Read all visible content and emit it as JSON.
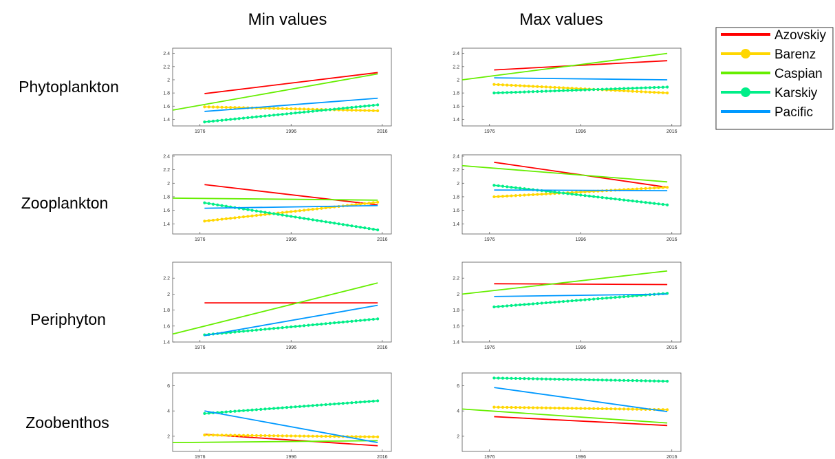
{
  "column_titles": [
    "Min values",
    "Max values"
  ],
  "row_labels": [
    "Phytoplankton",
    "Zooplankton",
    "Periphyton",
    "Zoobenthos"
  ],
  "legend": [
    {
      "name": "Azovskiy",
      "color": "#ff0000",
      "marker": false
    },
    {
      "name": "Barenz",
      "color": "#ffd700",
      "marker": true
    },
    {
      "name": "Caspian",
      "color": "#66ee00",
      "marker": false
    },
    {
      "name": "Karskiy",
      "color": "#00ee88",
      "marker": true
    },
    {
      "name": "Pacific",
      "color": "#0099ff",
      "marker": false
    }
  ],
  "chart_data": [
    {
      "type": "line",
      "row": "Phytoplankton",
      "column": "Min values",
      "xlim": [
        1970,
        2018
      ],
      "ylim": [
        1.3,
        2.48
      ],
      "xticks": [
        "1976",
        "1996",
        "2016"
      ],
      "yticks": [
        "1.4",
        "1.6",
        "1.8",
        "2",
        "2.2",
        "2.4"
      ],
      "series": [
        {
          "name": "Azovskiy",
          "x": [
            1977,
            2015
          ],
          "y": [
            1.79,
            2.11
          ]
        },
        {
          "name": "Barenz",
          "x": [
            1977,
            2015
          ],
          "y": [
            1.59,
            1.53
          ]
        },
        {
          "name": "Caspian",
          "x": [
            1970,
            2015
          ],
          "y": [
            1.54,
            2.09
          ]
        },
        {
          "name": "Karskiy",
          "x": [
            1977,
            2015
          ],
          "y": [
            1.36,
            1.62
          ]
        },
        {
          "name": "Pacific",
          "x": [
            1977,
            2015
          ],
          "y": [
            1.52,
            1.72
          ]
        }
      ]
    },
    {
      "type": "line",
      "row": "Phytoplankton",
      "column": "Max values",
      "xlim": [
        1970,
        2018
      ],
      "ylim": [
        1.3,
        2.48
      ],
      "xticks": [
        "1976",
        "1996",
        "2016"
      ],
      "yticks": [
        "1.4",
        "1.6",
        "1.8",
        "2",
        "2.2",
        "2.4"
      ],
      "series": [
        {
          "name": "Azovskiy",
          "x": [
            1977,
            2015
          ],
          "y": [
            2.15,
            2.29
          ]
        },
        {
          "name": "Barenz",
          "x": [
            1977,
            2015
          ],
          "y": [
            1.93,
            1.8
          ]
        },
        {
          "name": "Caspian",
          "x": [
            1970,
            2015
          ],
          "y": [
            2.0,
            2.4
          ]
        },
        {
          "name": "Karskiy",
          "x": [
            1977,
            2015
          ],
          "y": [
            1.8,
            1.89
          ]
        },
        {
          "name": "Pacific",
          "x": [
            1977,
            2015
          ],
          "y": [
            2.03,
            2.0
          ]
        }
      ]
    },
    {
      "type": "line",
      "row": "Zooplankton",
      "column": "Min values",
      "xlim": [
        1970,
        2018
      ],
      "ylim": [
        1.25,
        2.42
      ],
      "xticks": [
        "1976",
        "1996",
        "2016"
      ],
      "yticks": [
        "1.4",
        "1.6",
        "1.8",
        "2",
        "2.2",
        "2.4"
      ],
      "series": [
        {
          "name": "Azovskiy",
          "x": [
            1977,
            2015
          ],
          "y": [
            1.98,
            1.68
          ]
        },
        {
          "name": "Barenz",
          "x": [
            1977,
            2015
          ],
          "y": [
            1.44,
            1.72
          ]
        },
        {
          "name": "Caspian",
          "x": [
            1970,
            2015
          ],
          "y": [
            1.78,
            1.75
          ]
        },
        {
          "name": "Karskiy",
          "x": [
            1977,
            2015
          ],
          "y": [
            1.71,
            1.31
          ]
        },
        {
          "name": "Pacific",
          "x": [
            1977,
            2015
          ],
          "y": [
            1.63,
            1.67
          ]
        }
      ]
    },
    {
      "type": "line",
      "row": "Zooplankton",
      "column": "Max values",
      "xlim": [
        1970,
        2018
      ],
      "ylim": [
        1.25,
        2.42
      ],
      "xticks": [
        "1976",
        "1996",
        "2016"
      ],
      "yticks": [
        "1.4",
        "1.6",
        "1.8",
        "2",
        "2.2",
        "2.4"
      ],
      "series": [
        {
          "name": "Azovskiy",
          "x": [
            1977,
            2015
          ],
          "y": [
            2.31,
            1.94
          ]
        },
        {
          "name": "Barenz",
          "x": [
            1977,
            2015
          ],
          "y": [
            1.8,
            1.94
          ]
        },
        {
          "name": "Caspian",
          "x": [
            1970,
            2015
          ],
          "y": [
            2.26,
            2.02
          ]
        },
        {
          "name": "Karskiy",
          "x": [
            1977,
            2015
          ],
          "y": [
            1.97,
            1.68
          ]
        },
        {
          "name": "Pacific",
          "x": [
            1977,
            2015
          ],
          "y": [
            1.9,
            1.89
          ]
        }
      ]
    },
    {
      "type": "line",
      "row": "Periphyton",
      "column": "Min values",
      "xlim": [
        1970,
        2018
      ],
      "ylim": [
        1.4,
        2.4
      ],
      "xticks": [
        "1976",
        "1996",
        "2016"
      ],
      "yticks": [
        "1.4",
        "1.6",
        "1.8",
        "2",
        "2.2"
      ],
      "series": [
        {
          "name": "Azovskiy",
          "x": [
            1977,
            2015
          ],
          "y": [
            1.89,
            1.89
          ]
        },
        {
          "name": "Caspian",
          "x": [
            1970,
            2015
          ],
          "y": [
            1.5,
            2.14
          ]
        },
        {
          "name": "Karskiy",
          "x": [
            1977,
            2015
          ],
          "y": [
            1.49,
            1.69
          ]
        },
        {
          "name": "Pacific",
          "x": [
            1977,
            2015
          ],
          "y": [
            1.48,
            1.86
          ]
        }
      ]
    },
    {
      "type": "line",
      "row": "Periphyton",
      "column": "Max values",
      "xlim": [
        1970,
        2018
      ],
      "ylim": [
        1.4,
        2.4
      ],
      "xticks": [
        "1976",
        "1996",
        "2016"
      ],
      "yticks": [
        "1.4",
        "1.6",
        "1.8",
        "2",
        "2.2"
      ],
      "series": [
        {
          "name": "Azovskiy",
          "x": [
            1977,
            2015
          ],
          "y": [
            2.13,
            2.12
          ]
        },
        {
          "name": "Caspian",
          "x": [
            1970,
            2015
          ],
          "y": [
            2.0,
            2.29
          ]
        },
        {
          "name": "Karskiy",
          "x": [
            1977,
            2015
          ],
          "y": [
            1.84,
            2.01
          ]
        },
        {
          "name": "Pacific",
          "x": [
            1977,
            2015
          ],
          "y": [
            1.97,
            2.0
          ]
        }
      ]
    },
    {
      "type": "line",
      "row": "Zoobenthos",
      "column": "Min values",
      "xlim": [
        1970,
        2018
      ],
      "ylim": [
        0.8,
        7.0
      ],
      "xticks": [
        "1976",
        "1996",
        "2016"
      ],
      "yticks": [
        "2",
        "4",
        "6"
      ],
      "series": [
        {
          "name": "Azovskiy",
          "x": [
            1977,
            2015
          ],
          "y": [
            2.15,
            1.25
          ]
        },
        {
          "name": "Barenz",
          "x": [
            1977,
            2015
          ],
          "y": [
            2.1,
            1.95
          ]
        },
        {
          "name": "Caspian",
          "x": [
            1970,
            2015
          ],
          "y": [
            1.5,
            1.65
          ]
        },
        {
          "name": "Karskiy",
          "x": [
            1977,
            2015
          ],
          "y": [
            3.8,
            4.8
          ]
        },
        {
          "name": "Pacific",
          "x": [
            1977,
            2015
          ],
          "y": [
            4.0,
            1.5
          ]
        }
      ]
    },
    {
      "type": "line",
      "row": "Zoobenthos",
      "column": "Max values",
      "xlim": [
        1970,
        2018
      ],
      "ylim": [
        0.8,
        7.0
      ],
      "xticks": [
        "1976",
        "1996",
        "2016"
      ],
      "yticks": [
        "2",
        "4",
        "6"
      ],
      "series": [
        {
          "name": "Azovskiy",
          "x": [
            1977,
            2015
          ],
          "y": [
            3.55,
            2.85
          ]
        },
        {
          "name": "Barenz",
          "x": [
            1977,
            2015
          ],
          "y": [
            4.3,
            4.1
          ]
        },
        {
          "name": "Caspian",
          "x": [
            1970,
            2015
          ],
          "y": [
            4.15,
            3.05
          ]
        },
        {
          "name": "Karskiy",
          "x": [
            1977,
            2015
          ],
          "y": [
            6.6,
            6.35
          ]
        },
        {
          "name": "Pacific",
          "x": [
            1977,
            2015
          ],
          "y": [
            5.85,
            3.95
          ]
        }
      ]
    }
  ]
}
